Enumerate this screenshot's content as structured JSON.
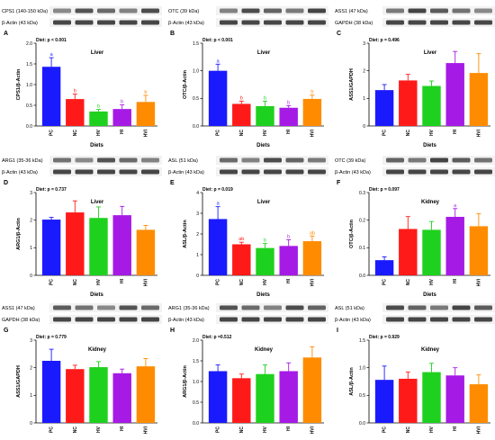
{
  "chart_data": [
    {
      "type": "bar",
      "letter": "A",
      "tissue": "Liver",
      "diet_p": "Diet: p < 0.001",
      "ylabel": "CPS1/β-Actin",
      "xlabel": "Diets",
      "ylim": [
        0,
        2.0
      ],
      "yticks": [
        "0.0",
        "0.5",
        "1.0",
        "1.5",
        "2.0"
      ],
      "categories": [
        "PC",
        "NC",
        "HV",
        "HI",
        "HVI"
      ],
      "values": [
        1.43,
        0.65,
        0.35,
        0.41,
        0.58
      ],
      "errors": [
        0.22,
        0.12,
        0.05,
        0.1,
        0.16
      ],
      "sig": [
        "a",
        "b",
        "b",
        "b",
        "b"
      ],
      "blots": [
        {
          "label": "CPS1 (140-150 kDa)"
        },
        {
          "label": "β-Actin (43 kDa)"
        }
      ]
    },
    {
      "type": "bar",
      "letter": "B",
      "tissue": "Liver",
      "diet_p": "Diet: p < 0.001",
      "ylabel": "OTC/β-Actin",
      "xlabel": "Diets",
      "ylim": [
        0,
        1.5
      ],
      "yticks": [
        "0.0",
        "0.5",
        "1.0",
        "1.5"
      ],
      "categories": [
        "PC",
        "NC",
        "HV",
        "HI",
        "HVI"
      ],
      "values": [
        1.0,
        0.4,
        0.36,
        0.33,
        0.49
      ],
      "errors": [
        0.12,
        0.05,
        0.09,
        0.04,
        0.07
      ],
      "sig": [
        "a",
        "b",
        "b",
        "b",
        "b"
      ],
      "blots": [
        {
          "label": "OTC (39 kDa)"
        },
        {
          "label": "β-Actin (43 kDa)"
        }
      ]
    },
    {
      "type": "bar",
      "letter": "C",
      "tissue": "Liver",
      "diet_p": "Diet: p = 0.496",
      "ylabel": "ASS1/GAPDH",
      "xlabel": "Diets",
      "ylim": [
        0,
        3
      ],
      "yticks": [
        "0",
        "1",
        "2",
        "3"
      ],
      "categories": [
        "PC",
        "NC",
        "HV",
        "HI",
        "HVI"
      ],
      "values": [
        1.3,
        1.65,
        1.45,
        2.28,
        1.92
      ],
      "errors": [
        0.2,
        0.22,
        0.18,
        0.42,
        0.7
      ],
      "sig": [
        "",
        "",
        "",
        "",
        ""
      ],
      "blots": [
        {
          "label": "ASS1 (47 kDa)"
        },
        {
          "label": "GAPDH (38 kDa)"
        }
      ]
    },
    {
      "type": "bar",
      "letter": "D",
      "tissue": "Liver",
      "diet_p": "Diet: p = 0.737",
      "ylabel": "ARG1/β-Actin",
      "xlabel": "Diets",
      "ylim": [
        0,
        3
      ],
      "yticks": [
        "0",
        "1",
        "2",
        "3"
      ],
      "categories": [
        "PC",
        "NC",
        "HV",
        "HI",
        "HVI"
      ],
      "values": [
        2.02,
        2.28,
        2.08,
        2.18,
        1.65
      ],
      "errors": [
        0.08,
        0.42,
        0.4,
        0.32,
        0.16
      ],
      "sig": [
        "",
        "",
        "",
        "",
        ""
      ],
      "blots": [
        {
          "label": "ARG1 (35-36 kDa)"
        },
        {
          "label": "β-Actin (43 kDa)"
        }
      ]
    },
    {
      "type": "bar",
      "letter": "E",
      "tissue": "Liver",
      "diet_p": "Diet: p = 0.019",
      "ylabel": "ASL/β-Actin",
      "xlabel": "Diets",
      "ylim": [
        0,
        4
      ],
      "yticks": [
        "0",
        "1",
        "2",
        "3",
        "4"
      ],
      "categories": [
        "PC",
        "NC",
        "HV",
        "HI",
        "HVI"
      ],
      "values": [
        2.72,
        1.5,
        1.32,
        1.42,
        1.65
      ],
      "errors": [
        0.6,
        0.1,
        0.22,
        0.3,
        0.25
      ],
      "sig": [
        "a",
        "ab",
        "b",
        "b",
        "ab"
      ],
      "blots": [
        {
          "label": "ASL (51 kDa)"
        },
        {
          "label": "β-Actin (43 kDa)"
        }
      ]
    },
    {
      "type": "bar",
      "letter": "F",
      "tissue": "Kidney",
      "diet_p": "Diet: p = 0.097",
      "ylabel": "OTC/β-Actin",
      "xlabel": "Diets",
      "ylim": [
        0,
        0.3
      ],
      "yticks": [
        "0.0",
        "0.1",
        "0.2",
        "0.3"
      ],
      "categories": [
        "PC",
        "NC",
        "HV",
        "HI",
        "HVI"
      ],
      "values": [
        0.055,
        0.168,
        0.165,
        0.212,
        0.178
      ],
      "errors": [
        0.012,
        0.045,
        0.03,
        0.03,
        0.045
      ],
      "sig": [
        "",
        "",
        "",
        "a",
        ""
      ],
      "blots": [
        {
          "label": "OTC (39 kDa)"
        },
        {
          "label": "β-Actin (43 kDa)"
        }
      ]
    },
    {
      "type": "bar",
      "letter": "G",
      "tissue": "Kidney",
      "diet_p": "Diet: p = 0.779",
      "ylabel": "ASS1/GAPDH",
      "xlabel": "Diets",
      "ylim": [
        0,
        3
      ],
      "yticks": [
        "0",
        "1",
        "2",
        "3"
      ],
      "categories": [
        "PC",
        "NC",
        "HV",
        "HI",
        "HVI"
      ],
      "values": [
        2.25,
        1.95,
        2.02,
        1.8,
        2.05
      ],
      "errors": [
        0.42,
        0.14,
        0.2,
        0.15,
        0.28
      ],
      "sig": [
        "",
        "",
        "",
        "",
        ""
      ],
      "blots": [
        {
          "label": "ASS1 (47 kDa)"
        },
        {
          "label": "GAPDH (38 kDa)"
        }
      ]
    },
    {
      "type": "bar",
      "letter": "H",
      "tissue": "Kidney",
      "diet_p": "Diet: p =0.512",
      "ylabel": "ARG1/β-Actin",
      "xlabel": "Diets",
      "ylim": [
        0,
        2.0
      ],
      "yticks": [
        "0.0",
        "0.5",
        "1.0",
        "1.5",
        "2.0"
      ],
      "categories": [
        "PC",
        "NC",
        "HV",
        "HI",
        "HVI"
      ],
      "values": [
        1.25,
        1.08,
        1.18,
        1.25,
        1.58
      ],
      "errors": [
        0.15,
        0.1,
        0.22,
        0.2,
        0.26
      ],
      "sig": [
        "",
        "",
        "",
        "",
        ""
      ],
      "blots": [
        {
          "label": "ARG1 (35-36 kDa)"
        },
        {
          "label": "β-Actin (43 kDa)"
        }
      ]
    },
    {
      "type": "bar",
      "letter": "I",
      "tissue": "Kidney",
      "diet_p": "Diet: p = 0.929",
      "ylabel": "ASL/β-Actin",
      "xlabel": "Diets",
      "ylim": [
        0,
        1.5
      ],
      "yticks": [
        "0.0",
        "0.5",
        "1.0",
        "1.5"
      ],
      "categories": [
        "PC",
        "NC",
        "HV",
        "HI",
        "HVI"
      ],
      "values": [
        0.78,
        0.8,
        0.92,
        0.86,
        0.7
      ],
      "errors": [
        0.25,
        0.12,
        0.16,
        0.14,
        0.17
      ],
      "sig": [
        "",
        "",
        "",
        "",
        ""
      ],
      "blots": [
        {
          "label": "ASL (51 kDa)"
        },
        {
          "label": "β-Actin (43 kDa)"
        }
      ]
    }
  ],
  "colors": {
    "series": [
      "#1a1aff",
      "#ff1a1a",
      "#1fd11f",
      "#a61ae6",
      "#ff8c00"
    ],
    "sig": [
      "#1a1aff",
      "#ff1a1a",
      "#1fd11f",
      "#a61ae6",
      "#ff8c00"
    ],
    "blot_bg": "#f2f2f2",
    "band": "#333333"
  }
}
